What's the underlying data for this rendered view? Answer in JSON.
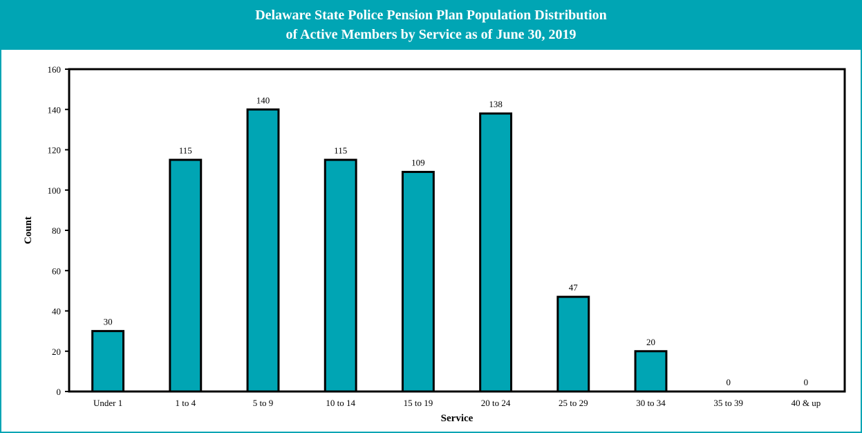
{
  "header": {
    "title_line1": "Delaware State Police Pension Plan Population Distribution",
    "title_line2": "of Active Members by Service as of June 30, 2019"
  },
  "colors": {
    "bar_fill": "#00a5b4",
    "bar_stroke": "#000000",
    "header_bg": "#00a5b4"
  },
  "chart_data": {
    "type": "bar",
    "title": "Delaware State Police Pension Plan Population Distribution of Active Members by Service as of June 30, 2019",
    "categories": [
      "Under 1",
      "1 to 4",
      "5 to 9",
      "10 to 14",
      "15 to 19",
      "20 to 24",
      "25 to 29",
      "30 to 34",
      "35 to 39",
      "40 & up"
    ],
    "values": [
      30,
      115,
      140,
      115,
      109,
      138,
      47,
      20,
      0,
      0
    ],
    "data_labels": [
      "30",
      "115",
      "140",
      "115",
      "109",
      "138",
      "47",
      "20",
      "0",
      "0"
    ],
    "xlabel": "Service",
    "ylabel": "Count",
    "ylim": [
      0,
      160
    ],
    "yticks": [
      0,
      20,
      40,
      60,
      80,
      100,
      120,
      140,
      160
    ],
    "grid": false,
    "legend": "none"
  }
}
